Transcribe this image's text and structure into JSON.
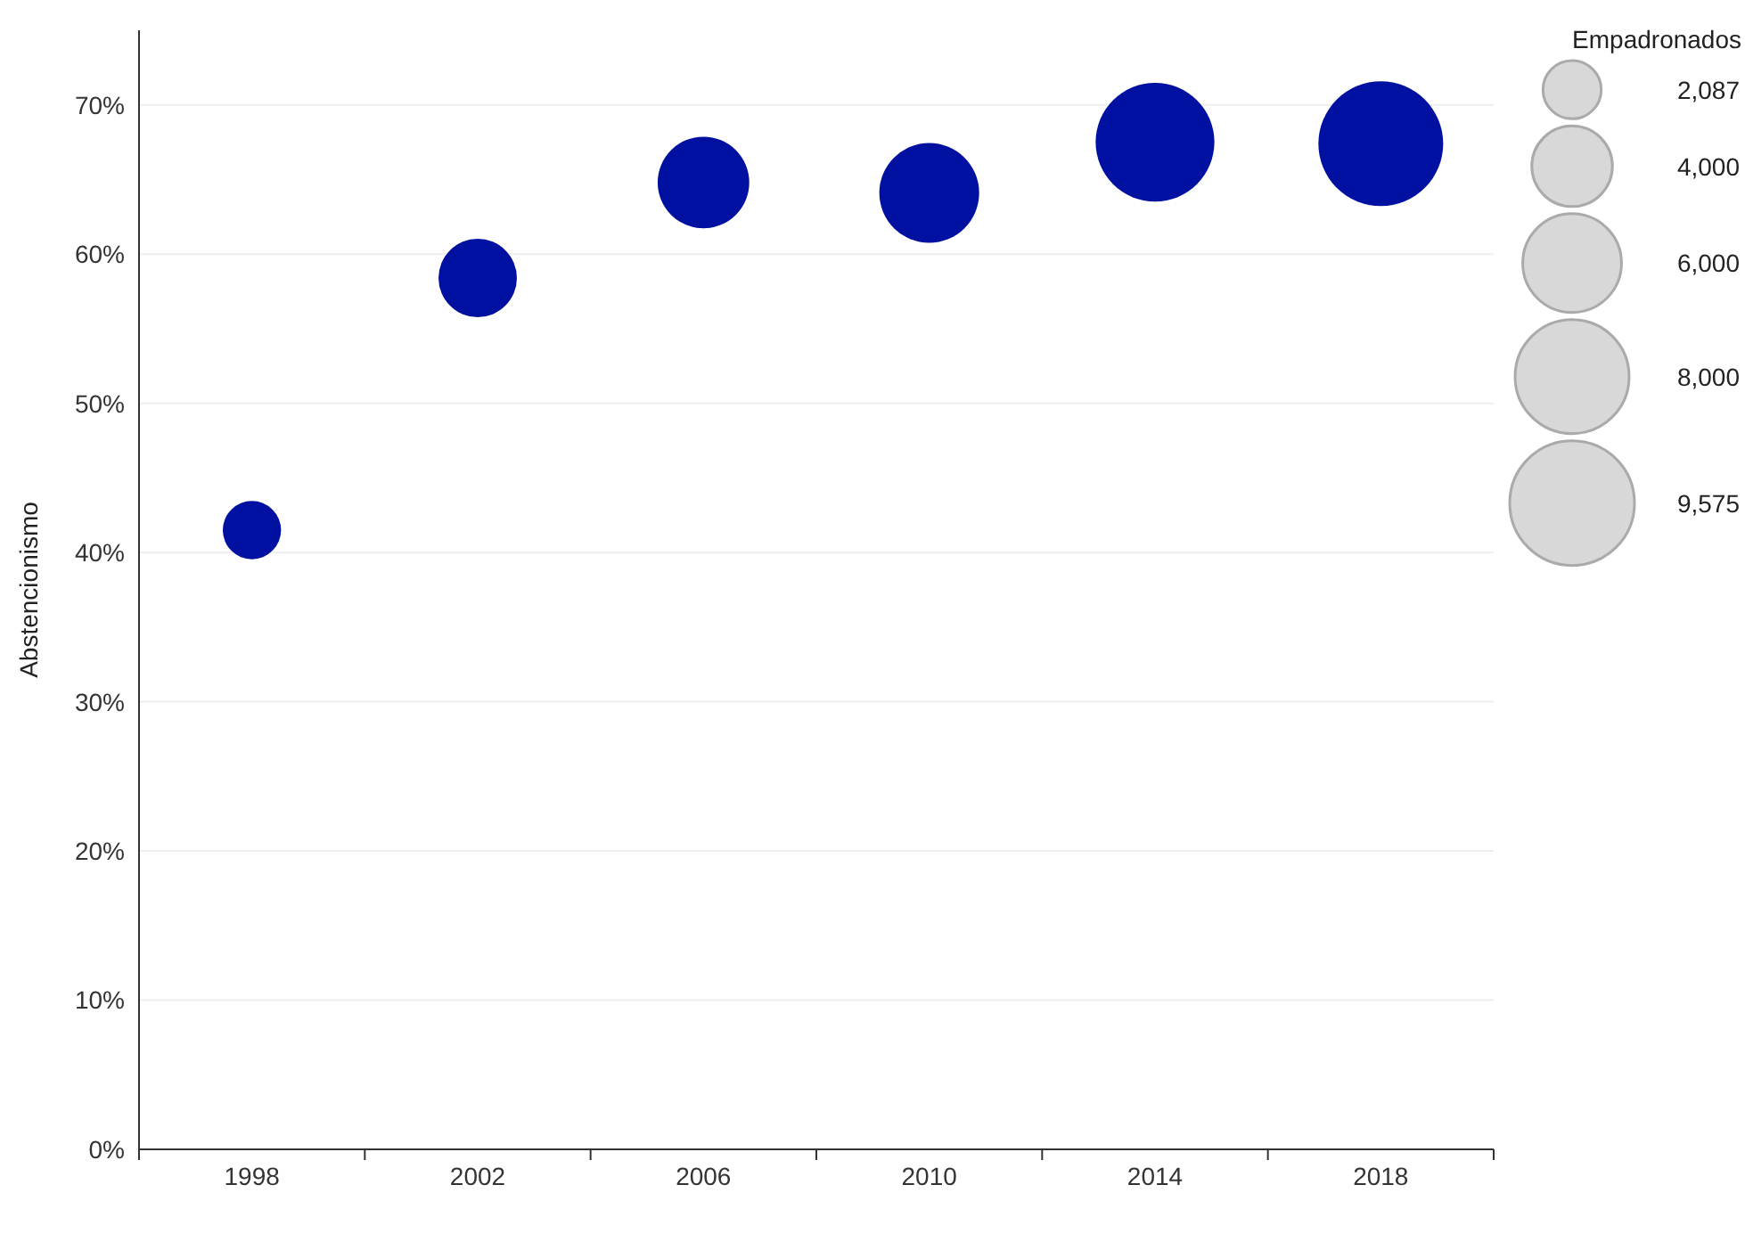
{
  "chart_data": {
    "type": "bubble",
    "ylabel": "Abstencionismo",
    "legend_title": "Empadronados",
    "categories": [
      "1998",
      "2002",
      "2006",
      "2010",
      "2014",
      "2018"
    ],
    "series": [
      {
        "color": "#0010a0",
        "values": [
          41.5,
          58.4,
          64.8,
          64.1,
          67.5,
          67.4
        ],
        "sizes": [
          2087,
          3780,
          5160,
          6130,
          8670,
          9575
        ]
      }
    ],
    "size_legend": [
      {
        "value": 2087,
        "label": "2,087"
      },
      {
        "value": 4000,
        "label": "4,000"
      },
      {
        "value": 6000,
        "label": "6,000"
      },
      {
        "value": 8000,
        "label": "8,000"
      },
      {
        "value": 9575,
        "label": "9,575"
      }
    ],
    "ylim": [
      0,
      75
    ],
    "yticks": [
      {
        "value": 0,
        "label": "0%"
      },
      {
        "value": 10,
        "label": "10%"
      },
      {
        "value": 20,
        "label": "20%"
      },
      {
        "value": 30,
        "label": "30%"
      },
      {
        "value": 40,
        "label": "40%"
      },
      {
        "value": 50,
        "label": "50%"
      },
      {
        "value": 60,
        "label": "60%"
      },
      {
        "value": 70,
        "label": "70%"
      }
    ],
    "grid": "y"
  }
}
